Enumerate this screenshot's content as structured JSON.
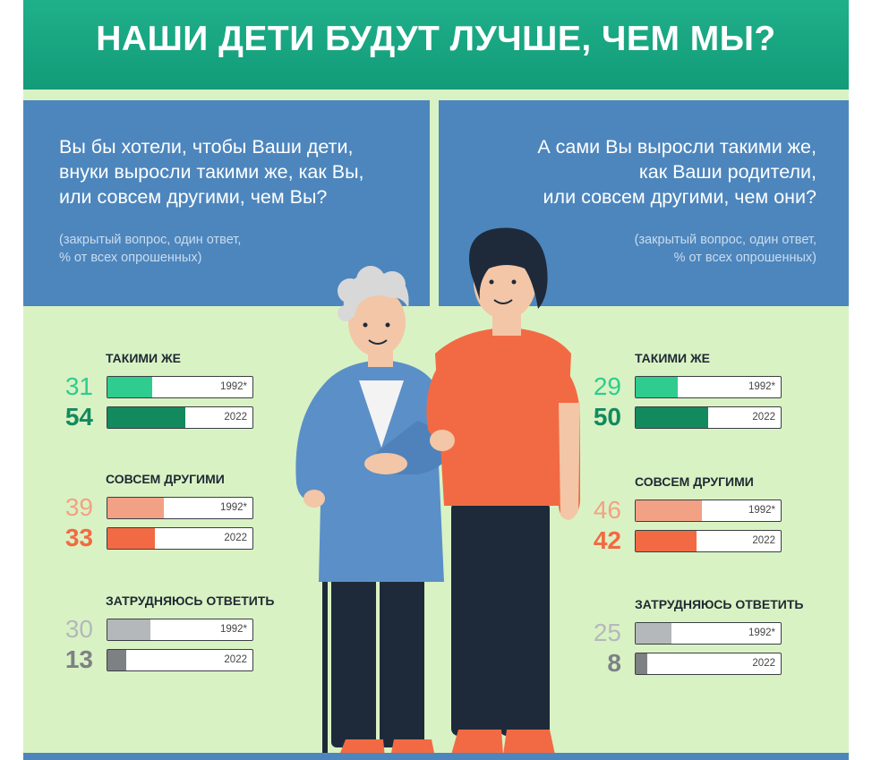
{
  "title": "НАШИ ДЕТИ БУДУТ ЛУЧШЕ, ЧЕМ МЫ?",
  "left_panel": {
    "question_lines": [
      "Вы бы хотели, чтобы Ваши дети,",
      "внуки выросли такими же, как Вы,",
      "или совсем другими, чем Вы?"
    ],
    "note_lines": [
      "(закрытый вопрос, один ответ,",
      "% от всех опрошенных)"
    ]
  },
  "right_panel": {
    "question_lines": [
      "А сами Вы выросли такими же,",
      "как Ваши родители,",
      "или совсем другими, чем они?"
    ],
    "note_lines": [
      "(закрытый вопрос, один ответ,",
      "% от всех опрошенных)"
    ]
  },
  "chart_data": [
    {
      "type": "bar",
      "categories": [
        "ТАКИМИ ЖЕ",
        "СОВСЕМ ДРУГИМИ",
        "ЗАТРУДНЯЮСЬ ОТВЕТИТЬ"
      ],
      "series": [
        {
          "name": "1992*",
          "values": [
            31,
            39,
            30
          ]
        },
        {
          "name": "2022",
          "values": [
            54,
            33,
            13
          ]
        }
      ],
      "xlim": [
        0,
        100
      ],
      "colors": {
        "ТАКИМИ ЖЕ": [
          "#2ecc8f",
          "#138a5e"
        ],
        "СОВСЕМ ДРУГИМИ": [
          "#f3a184",
          "#f26a43"
        ],
        "ЗАТРУДНЯЮСЬ ОТВЕТИТЬ": [
          "#b4b8bb",
          "#7d8184"
        ]
      }
    },
    {
      "type": "bar",
      "categories": [
        "ТАКИМИ ЖЕ",
        "СОВСЕМ ДРУГИМИ",
        "ЗАТРУДНЯЮСЬ ОТВЕТИТЬ"
      ],
      "series": [
        {
          "name": "1992*",
          "values": [
            29,
            46,
            25
          ]
        },
        {
          "name": "2022",
          "values": [
            50,
            42,
            8
          ]
        }
      ],
      "xlim": [
        0,
        100
      ],
      "colors": {
        "ТАКИМИ ЖЕ": [
          "#2ecc8f",
          "#138a5e"
        ],
        "СОВСЕМ ДРУГИМИ": [
          "#f3a184",
          "#f26a43"
        ],
        "ЗАТРУДНЯЮСЬ ОТВЕТИТЬ": [
          "#b4b8bb",
          "#7d8184"
        ]
      }
    }
  ]
}
